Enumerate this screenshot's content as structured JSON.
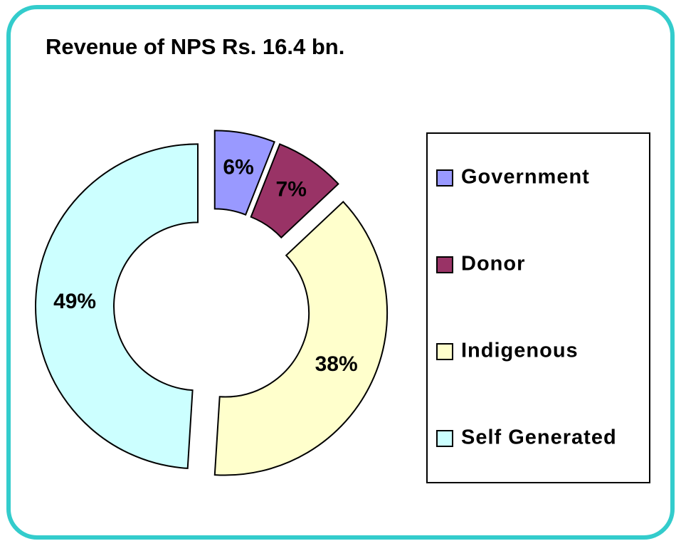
{
  "chart_data": {
    "type": "pie",
    "donut": true,
    "title": "Revenue of NPS Rs. 16.4 bn.",
    "categories": [
      "Government",
      "Donor",
      "Indigenous",
      "Self Generated"
    ],
    "values": [
      6,
      7,
      38,
      49
    ],
    "value_labels": [
      "6%",
      "7%",
      "38%",
      "49%"
    ],
    "colors": [
      "#9999ff",
      "#993366",
      "#ffffcc",
      "#ccffff"
    ],
    "legend": "right"
  }
}
